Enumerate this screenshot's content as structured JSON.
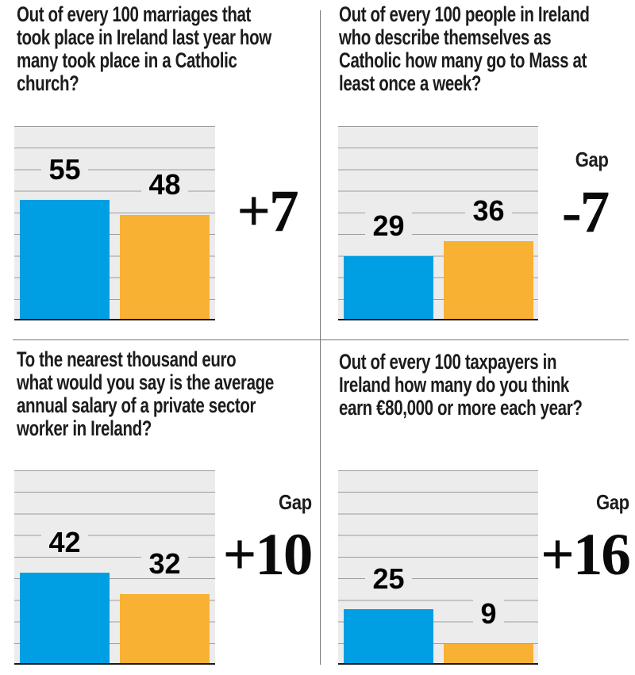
{
  "colors": {
    "bar_blue": "#009fe3",
    "bar_orange": "#f8b133",
    "plot_background": "#ececec",
    "gridline": "#9c9c9c",
    "baseline": "#1a1a1a",
    "text": "#1c1c1c"
  },
  "chart_data": [
    {
      "type": "bar",
      "question": "Out of every 100 marriages that\ntook place in Ireland last year how\nmany took place in a Catholic\nchurch?",
      "values": [
        55,
        48
      ],
      "bar_colors": [
        "#009fe3",
        "#f8b133"
      ],
      "ylim": [
        0,
        90
      ],
      "grid_step": 10,
      "gap_value": "+7"
    },
    {
      "type": "bar",
      "question": "Out of every 100 people in Ireland\nwho describe themselves as\nCatholic how many go to Mass at\nleast once a week?",
      "values": [
        29,
        36
      ],
      "bar_colors": [
        "#009fe3",
        "#f8b133"
      ],
      "ylim": [
        0,
        90
      ],
      "grid_step": 10,
      "gap_label": "Gap",
      "gap_value": "-7"
    },
    {
      "type": "bar",
      "question": "To the nearest thousand euro\nwhat would you say is the average\nannual salary of a private sector\nworker in Ireland?",
      "values": [
        42,
        32
      ],
      "bar_colors": [
        "#009fe3",
        "#f8b133"
      ],
      "ylim": [
        0,
        90
      ],
      "grid_step": 10,
      "gap_label": "Gap",
      "gap_value": "+10"
    },
    {
      "type": "bar",
      "question": "Out of every 100 taxpayers in\nIreland how many do you think\nearn €80,000 or more each year?",
      "values": [
        25,
        9
      ],
      "bar_colors": [
        "#009fe3",
        "#f8b133"
      ],
      "ylim": [
        0,
        90
      ],
      "grid_step": 10,
      "gap_label": "Gap",
      "gap_value": "+16"
    }
  ]
}
